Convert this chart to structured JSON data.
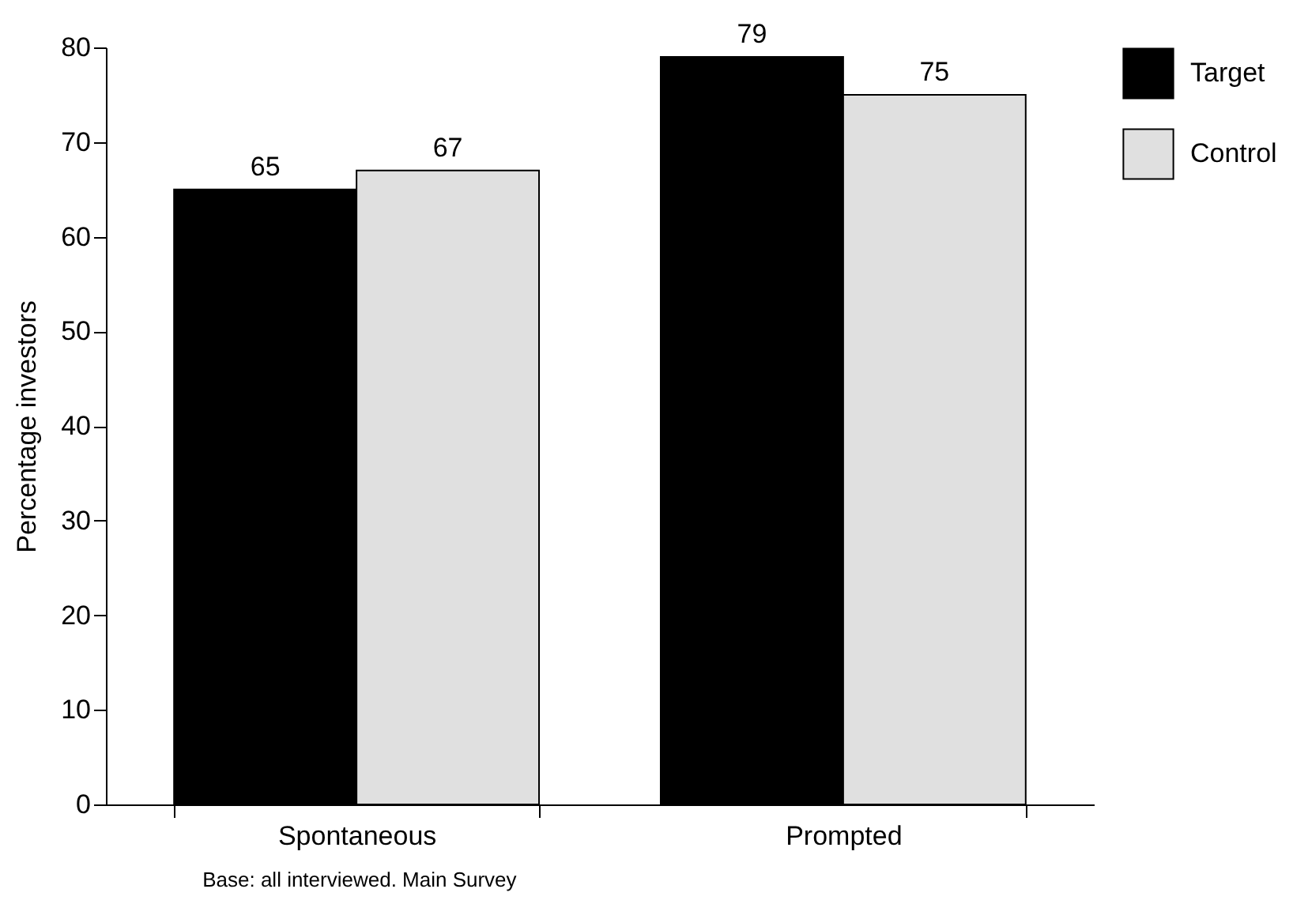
{
  "chart_data": {
    "type": "bar",
    "ylabel": "Percentage  investors",
    "categories": [
      "Spontaneous",
      "Prompted"
    ],
    "series": [
      {
        "name": "Target",
        "color": "#000000",
        "values": [
          65,
          79
        ]
      },
      {
        "name": "Control",
        "color": "#e0e0e0",
        "values": [
          67,
          75
        ]
      }
    ],
    "ylim": [
      0,
      80
    ],
    "yticks": [
      0,
      10,
      20,
      30,
      40,
      50,
      60,
      70,
      80
    ],
    "grid": false,
    "legend": "top right",
    "data_labels": true,
    "annotations": [
      "Base: all interviewed. Main Survey"
    ]
  }
}
